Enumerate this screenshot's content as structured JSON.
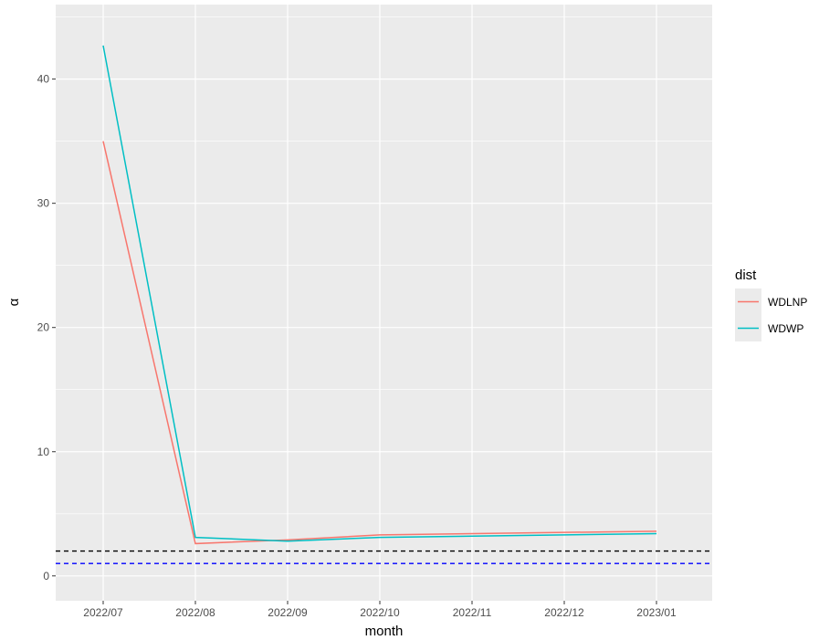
{
  "chart_data": {
    "type": "line",
    "xlabel": "month",
    "ylabel": "α",
    "x": [
      "2022/07",
      "2022/08",
      "2022/09",
      "2022/10",
      "2022/11",
      "2022/12",
      "2023/01"
    ],
    "ylim": [
      -2,
      46
    ],
    "yticks": [
      0,
      10,
      20,
      30,
      40
    ],
    "grid": true,
    "legend": {
      "title": "dist",
      "placement": "right"
    },
    "series": [
      {
        "name": "WDLNP",
        "color": "#F8766D",
        "values": [
          35.0,
          2.6,
          2.9,
          3.3,
          3.4,
          3.5,
          3.6
        ]
      },
      {
        "name": "WDWP",
        "color": "#00BFC4",
        "values": [
          42.7,
          3.1,
          2.8,
          3.1,
          3.2,
          3.3,
          3.4
        ]
      }
    ],
    "reference_lines": [
      {
        "y": 2,
        "color": "#000000",
        "style": "dashed"
      },
      {
        "y": 1,
        "color": "#0000FF",
        "style": "dashed"
      }
    ]
  }
}
